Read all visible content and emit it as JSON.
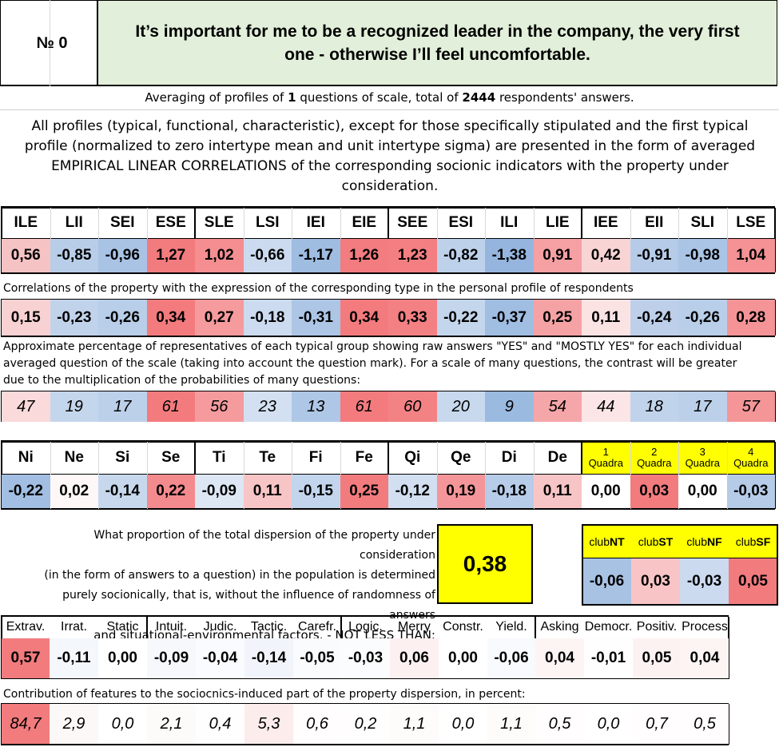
{
  "header": {
    "number_label": "№ 0",
    "statement": "It’s important for me to be a recognized leader in the company, the very first one - otherwise I’ll feel uncomfortable."
  },
  "summary": {
    "averaging_prefix": "Averaging of profiles of ",
    "question_count": "1",
    "averaging_middle": " questions of scale, total of ",
    "respondent_count": "2444",
    "averaging_suffix": " respondents' answers.",
    "description": "All profiles (typical, functional, characteristic), except for those specifically stipulated and the first typical profile (normalized to zero intertype mean and unit intertype sigma) are presented in the form of averaged EMPIRICAL LINEAR CORRELATIONS of the corresponding socionic indicators with the property under consideration."
  },
  "types": {
    "labels": [
      "ILE",
      "LII",
      "SEI",
      "ESE",
      "SLE",
      "LSI",
      "IEI",
      "EIE",
      "SEE",
      "ESI",
      "ILI",
      "LIE",
      "IEE",
      "EII",
      "SLI",
      "LSE"
    ],
    "profile": [
      "0,56",
      "-0,85",
      "-0,96",
      "1,27",
      "1,02",
      "-0,66",
      "-1,17",
      "1,26",
      "1,23",
      "-0,82",
      "-1,38",
      "0,91",
      "0,42",
      "-0,91",
      "-0,98",
      "1,04"
    ],
    "profile_colors": [
      "#f6c3c5",
      "#b8cde8",
      "#a9c3e5",
      "#f27b7e",
      "#f48e91",
      "#cbdaee",
      "#9fbce1",
      "#f27c7f",
      "#f37f82",
      "#bdd1ea",
      "#95b5de",
      "#f5a0a3",
      "#f9d4d5",
      "#b5cbe8",
      "#aac4e5",
      "#f49295"
    ],
    "correlations_note": "Correlations of the property with the expression of the corresponding type in the personal profile of respondents",
    "correlations": [
      "0,15",
      "-0,23",
      "-0,26",
      "0,34",
      "0,27",
      "-0,18",
      "-0,31",
      "0,34",
      "0,33",
      "-0,22",
      "-0,37",
      "0,25",
      "0,11",
      "-0,24",
      "-0,26",
      "0,28"
    ],
    "correlation_colors": [
      "#f8d2d3",
      "#c1d3eb",
      "#b8cee9",
      "#f37b7e",
      "#f59a9d",
      "#ccdbef",
      "#adc6e6",
      "#f37b7e",
      "#f38083",
      "#c4d6ec",
      "#a0bde2",
      "#f5a2a5",
      "#fbe3e4",
      "#becfea",
      "#b8cee9",
      "#f49497"
    ],
    "percent_note": "Approximate percentage of representatives of each typical group showing raw answers \"YES\" and \"MOSTLY YES\" for each individual averaged question of the scale (taking into account the question mark). For a scale of many questions, the contrast will be greater due to the multiplication of the probabilities of many questions:",
    "percentages": [
      "47",
      "19",
      "17",
      "61",
      "56",
      "23",
      "13",
      "61",
      "60",
      "20",
      "9",
      "54",
      "44",
      "18",
      "17",
      "57"
    ],
    "percent_colors": [
      "#fadadb",
      "#c4d6ec",
      "#bcd0ea",
      "#f37b7e",
      "#f59b9e",
      "#d2e0f1",
      "#aec7e6",
      "#f37b7e",
      "#f38285",
      "#c8d9ee",
      "#9bbae0",
      "#f5a6a9",
      "#fbe5e6",
      "#c1d3eb",
      "#bcd0ea",
      "#f49598"
    ]
  },
  "functions": {
    "labels": [
      "Ni",
      "Ne",
      "Si",
      "Se",
      "Ti",
      "Te",
      "Fi",
      "Fe",
      "Qi",
      "Qe",
      "Di",
      "De"
    ],
    "values": [
      "-0,22",
      "0,02",
      "-0,14",
      "0,22",
      "-0,09",
      "0,11",
      "-0,15",
      "0,25",
      "-0,12",
      "0,19",
      "-0,18",
      "0,11"
    ],
    "colors": [
      "#a2bee2",
      "#fdf7f7",
      "#c7d8ed",
      "#f38a8d",
      "#dde7f4",
      "#f8c5c7",
      "#c3d5ec",
      "#f27b7e",
      "#d1dff0",
      "#f49699",
      "#b6cce8",
      "#f8c5c7"
    ]
  },
  "quadras": {
    "labels": [
      {
        "num": "1",
        "word": "Quadra"
      },
      {
        "num": "2",
        "word": "Quadra"
      },
      {
        "num": "3",
        "word": "Quadra"
      },
      {
        "num": "4",
        "word": "Quadra"
      }
    ],
    "values": [
      "0,00",
      "0,03",
      "0,00",
      "-0,03"
    ],
    "colors": [
      "#ffffff",
      "#f27b7e",
      "#ffffff",
      "#b5cbe8"
    ],
    "header_color": "#ffff00"
  },
  "dispersion": {
    "text_lines": [
      "What proportion of the total dispersion of the property under consideration",
      "(in the form of answers to a question) in the population is determined",
      "purely socionically, that is, without the influence of randomness of answers",
      "and situational-environmental factors. - NOT LESS THAN:"
    ],
    "value": "0,38",
    "value_color": "#ffff00"
  },
  "clubs": {
    "labels": [
      {
        "prefix": "club",
        "code": "NT"
      },
      {
        "prefix": "club",
        "code": "ST"
      },
      {
        "prefix": "club",
        "code": "NF"
      },
      {
        "prefix": "club",
        "code": "SF"
      }
    ],
    "values": [
      "-0,06",
      "0,03",
      "-0,03",
      "0,05"
    ],
    "colors": [
      "#a8c2e4",
      "#f8c4c6",
      "#cbdaef",
      "#f27b7e"
    ]
  },
  "features": {
    "labels": [
      "Extrav.",
      "Irrat.",
      "Static",
      "Intuit.",
      "Judic.",
      "Tactic.",
      "Carefr.",
      "Logic.",
      "Merry",
      "Constr.",
      "Yield.",
      "Asking",
      "Democr.",
      "Positiv.",
      "Process"
    ],
    "values": [
      "0,57",
      "-0,11",
      "0,00",
      "-0,09",
      "-0,04",
      "-0,14",
      "-0,05",
      "-0,03",
      "0,06",
      "0,00",
      "-0,06",
      "0,04",
      "-0,01",
      "0,05",
      "0,04"
    ],
    "colors": [
      "#f27b7e",
      "#f4f7fc",
      "#ffffff",
      "#f6f8fc",
      "#fafbfe",
      "#f1f5fb",
      "#f9fbfd",
      "#fbfcfe",
      "#fdf0f0",
      "#ffffff",
      "#f8fafd",
      "#fdf4f4",
      "#fefeff",
      "#fdf2f2",
      "#fdf4f4"
    ],
    "contribution_note": "Contribution of features to the sociocnics-induced part of the property dispersion, in percent:",
    "contributions": [
      "84,7",
      "2,9",
      "0,0",
      "2,1",
      "0,4",
      "5,3",
      "0,6",
      "0,2",
      "1,1",
      "0,0",
      "1,1",
      "0,5",
      "0,0",
      "0,7",
      "0,5"
    ],
    "contribution_colors": [
      "#f27b7e",
      "#fdf8f8",
      "#ffffff",
      "#fdfafa",
      "#fffefe",
      "#fcecec",
      "#fffdfd",
      "#fffefe",
      "#fefbfb",
      "#ffffff",
      "#fefbfb",
      "#fffdfd",
      "#ffffff",
      "#fffdfd",
      "#fffdfd"
    ]
  },
  "colors": {
    "header_green": "#e2efda",
    "border": "#000000"
  }
}
